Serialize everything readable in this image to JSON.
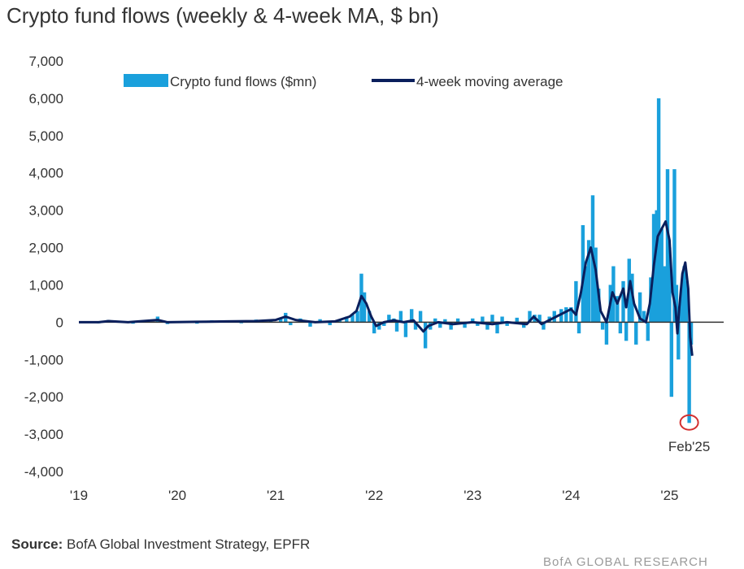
{
  "title": "Crypto fund flows (weekly & 4-week MA, $ bn)",
  "source_label": "Source:",
  "source_text": " BofA Global Investment Strategy, EPFR",
  "footer": "BofA GLOBAL RESEARCH",
  "colors": {
    "bars": "#1aa0dc",
    "line": "#0a1f5c",
    "marker": "#d32f2f",
    "axis": "#333333"
  },
  "chart_data": {
    "type": "bar",
    "title": "Crypto fund flows (weekly & 4-week MA, $ bn)",
    "xlabel": "",
    "ylabel": "",
    "ylim": [
      -4000,
      7000
    ],
    "yticks": [
      7000,
      6000,
      5000,
      4000,
      3000,
      2000,
      1000,
      0,
      -1000,
      -2000,
      -3000,
      -4000
    ],
    "ytick_labels": [
      "7,000",
      "6,000",
      "5,000",
      "4,000",
      "3,000",
      "2,000",
      "1,000",
      "0",
      "-1,000",
      "-2,000",
      "-3,000",
      "-4,000"
    ],
    "xlim": [
      2019.0,
      2025.55
    ],
    "xticks": [
      2019,
      2020,
      2021,
      2022,
      2023,
      2024,
      2025
    ],
    "xtick_labels": [
      "'19",
      "'20",
      "'21",
      "'22",
      "'23",
      "'24",
      "'25"
    ],
    "legend_position": "top",
    "series": [
      {
        "name": "Crypto fund flows ($mn)",
        "kind": "bar",
        "points": [
          [
            2019.08,
            20
          ],
          [
            2019.2,
            -30
          ],
          [
            2019.3,
            60
          ],
          [
            2019.42,
            30
          ],
          [
            2019.55,
            -40
          ],
          [
            2019.7,
            40
          ],
          [
            2019.8,
            150
          ],
          [
            2019.9,
            -50
          ],
          [
            2020.05,
            30
          ],
          [
            2020.2,
            -40
          ],
          [
            2020.35,
            50
          ],
          [
            2020.5,
            30
          ],
          [
            2020.65,
            -30
          ],
          [
            2020.8,
            70
          ],
          [
            2020.95,
            60
          ],
          [
            2021.05,
            120
          ],
          [
            2021.1,
            250
          ],
          [
            2021.15,
            -80
          ],
          [
            2021.25,
            100
          ],
          [
            2021.35,
            -120
          ],
          [
            2021.45,
            80
          ],
          [
            2021.55,
            -80
          ],
          [
            2021.65,
            60
          ],
          [
            2021.72,
            150
          ],
          [
            2021.78,
            200
          ],
          [
            2021.83,
            300
          ],
          [
            2021.87,
            1300
          ],
          [
            2021.9,
            800
          ],
          [
            2021.95,
            300
          ],
          [
            2022.0,
            -300
          ],
          [
            2022.05,
            -200
          ],
          [
            2022.1,
            -100
          ],
          [
            2022.15,
            200
          ],
          [
            2022.2,
            100
          ],
          [
            2022.23,
            -250
          ],
          [
            2022.27,
            300
          ],
          [
            2022.32,
            -400
          ],
          [
            2022.38,
            350
          ],
          [
            2022.42,
            -200
          ],
          [
            2022.47,
            300
          ],
          [
            2022.52,
            -700
          ],
          [
            2022.57,
            -200
          ],
          [
            2022.62,
            100
          ],
          [
            2022.67,
            -150
          ],
          [
            2022.72,
            80
          ],
          [
            2022.78,
            -200
          ],
          [
            2022.85,
            100
          ],
          [
            2022.92,
            -150
          ],
          [
            2023.0,
            100
          ],
          [
            2023.05,
            -100
          ],
          [
            2023.1,
            150
          ],
          [
            2023.15,
            -200
          ],
          [
            2023.2,
            200
          ],
          [
            2023.25,
            -300
          ],
          [
            2023.3,
            150
          ],
          [
            2023.35,
            -100
          ],
          [
            2023.45,
            120
          ],
          [
            2023.52,
            -150
          ],
          [
            2023.58,
            300
          ],
          [
            2023.63,
            200
          ],
          [
            2023.68,
            200
          ],
          [
            2023.72,
            -200
          ],
          [
            2023.78,
            150
          ],
          [
            2023.83,
            300
          ],
          [
            2023.9,
            350
          ],
          [
            2023.95,
            400
          ],
          [
            2024.0,
            400
          ],
          [
            2024.05,
            1100
          ],
          [
            2024.08,
            -300
          ],
          [
            2024.12,
            2600
          ],
          [
            2024.15,
            1500
          ],
          [
            2024.18,
            2200
          ],
          [
            2024.22,
            3400
          ],
          [
            2024.25,
            2000
          ],
          [
            2024.28,
            900
          ],
          [
            2024.32,
            -200
          ],
          [
            2024.36,
            -600
          ],
          [
            2024.4,
            1000
          ],
          [
            2024.43,
            1500
          ],
          [
            2024.47,
            700
          ],
          [
            2024.5,
            -300
          ],
          [
            2024.53,
            1100
          ],
          [
            2024.56,
            -500
          ],
          [
            2024.59,
            1700
          ],
          [
            2024.62,
            1300
          ],
          [
            2024.66,
            -600
          ],
          [
            2024.7,
            800
          ],
          [
            2024.74,
            300
          ],
          [
            2024.78,
            -500
          ],
          [
            2024.81,
            1200
          ],
          [
            2024.84,
            2900
          ],
          [
            2024.87,
            3000
          ],
          [
            2024.89,
            6000
          ],
          [
            2024.92,
            2500
          ],
          [
            2024.95,
            1500
          ],
          [
            2024.98,
            4100
          ],
          [
            2025.0,
            2000
          ],
          [
            2025.02,
            -2000
          ],
          [
            2025.05,
            4100
          ],
          [
            2025.07,
            1000
          ],
          [
            2025.09,
            -1000
          ],
          [
            2025.11,
            500
          ],
          [
            2025.13,
            1000
          ],
          [
            2025.15,
            1500
          ],
          [
            2025.17,
            1100
          ],
          [
            2025.2,
            -2700
          ],
          [
            2025.22,
            -600
          ]
        ]
      },
      {
        "name": "4-week moving average",
        "kind": "line",
        "points": [
          [
            2019.0,
            0
          ],
          [
            2019.2,
            0
          ],
          [
            2019.3,
            30
          ],
          [
            2019.5,
            0
          ],
          [
            2019.8,
            60
          ],
          [
            2019.9,
            0
          ],
          [
            2020.2,
            10
          ],
          [
            2020.5,
            20
          ],
          [
            2020.8,
            30
          ],
          [
            2021.0,
            60
          ],
          [
            2021.1,
            150
          ],
          [
            2021.2,
            60
          ],
          [
            2021.4,
            0
          ],
          [
            2021.6,
            20
          ],
          [
            2021.75,
            150
          ],
          [
            2021.82,
            300
          ],
          [
            2021.87,
            700
          ],
          [
            2021.92,
            500
          ],
          [
            2021.97,
            150
          ],
          [
            2022.02,
            -100
          ],
          [
            2022.1,
            0
          ],
          [
            2022.2,
            50
          ],
          [
            2022.3,
            0
          ],
          [
            2022.4,
            50
          ],
          [
            2022.5,
            -250
          ],
          [
            2022.55,
            -100
          ],
          [
            2022.65,
            0
          ],
          [
            2022.8,
            -50
          ],
          [
            2023.0,
            0
          ],
          [
            2023.2,
            -50
          ],
          [
            2023.35,
            0
          ],
          [
            2023.55,
            -50
          ],
          [
            2023.62,
            150
          ],
          [
            2023.7,
            -50
          ],
          [
            2023.85,
            150
          ],
          [
            2024.0,
            350
          ],
          [
            2024.05,
            200
          ],
          [
            2024.1,
            800
          ],
          [
            2024.15,
            1600
          ],
          [
            2024.2,
            2000
          ],
          [
            2024.25,
            1400
          ],
          [
            2024.3,
            300
          ],
          [
            2024.36,
            0
          ],
          [
            2024.42,
            800
          ],
          [
            2024.47,
            500
          ],
          [
            2024.53,
            900
          ],
          [
            2024.56,
            400
          ],
          [
            2024.6,
            1100
          ],
          [
            2024.64,
            500
          ],
          [
            2024.7,
            100
          ],
          [
            2024.76,
            0
          ],
          [
            2024.8,
            500
          ],
          [
            2024.84,
            1500
          ],
          [
            2024.88,
            2300
          ],
          [
            2024.92,
            2500
          ],
          [
            2024.96,
            2700
          ],
          [
            2025.0,
            2200
          ],
          [
            2025.03,
            800
          ],
          [
            2025.06,
            400
          ],
          [
            2025.08,
            -300
          ],
          [
            2025.1,
            400
          ],
          [
            2025.13,
            1300
          ],
          [
            2025.16,
            1600
          ],
          [
            2025.19,
            900
          ],
          [
            2025.21,
            -400
          ],
          [
            2025.23,
            -900
          ]
        ]
      }
    ],
    "annotations": [
      {
        "text": "Feb'25",
        "x": 2025.2,
        "y": -2600
      }
    ]
  }
}
